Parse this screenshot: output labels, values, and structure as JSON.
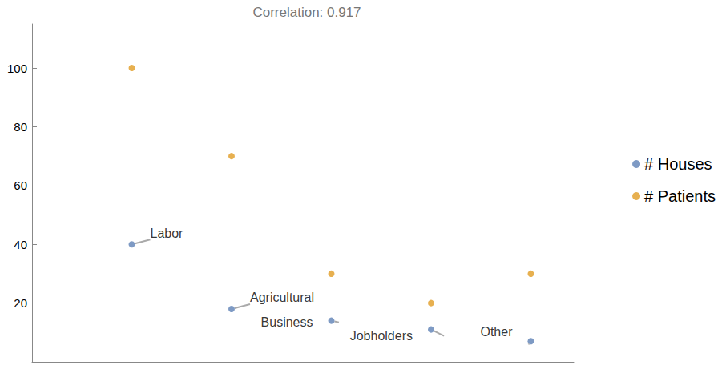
{
  "chart_data": {
    "type": "scatter",
    "title": "Correlation: 0.917",
    "x": [
      1,
      2,
      3,
      4,
      5
    ],
    "xlim": [
      0,
      5.43
    ],
    "ylim": [
      0,
      115
    ],
    "yticks": [
      20,
      40,
      60,
      80,
      100
    ],
    "tick_labels": "y",
    "grid": false,
    "legend": "right",
    "marker": "circle",
    "series": [
      {
        "name": "# Houses",
        "color": "#5e81b5",
        "values": [
          40,
          18,
          14,
          11,
          7
        ],
        "point_labels": [
          "Labor",
          "Agricultural",
          "Business",
          "Jobholders",
          "Other"
        ]
      },
      {
        "name": "# Patients",
        "color": "#e19c24",
        "values": [
          100,
          70,
          30,
          20,
          30
        ]
      }
    ]
  }
}
